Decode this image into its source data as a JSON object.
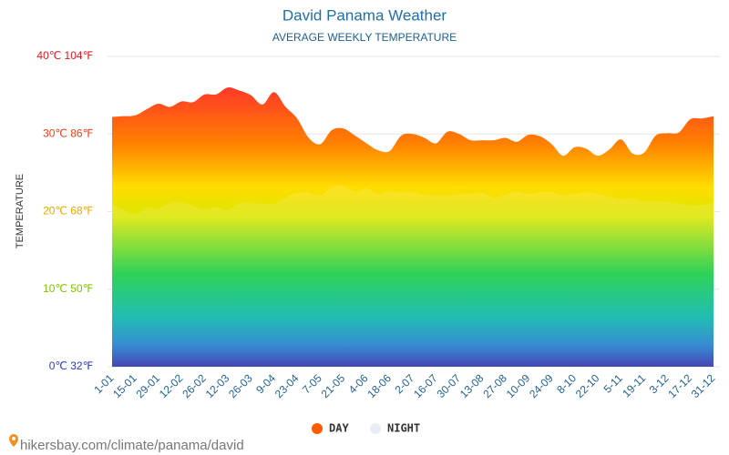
{
  "chart_data": {
    "type": "area",
    "title": "David Panama Weather",
    "subtitle": "AVERAGE WEEKLY TEMPERATURE",
    "y_label": "TEMPERATURE",
    "source": "hikersbay.com/climate/panama/david",
    "categories": [
      "1-01",
      null,
      "15-01",
      null,
      "29-01",
      null,
      "12-02",
      null,
      "26-02",
      null,
      "12-03",
      null,
      "26-03",
      null,
      "9-04",
      null,
      "23-04",
      null,
      "7-05",
      null,
      "21-05",
      null,
      "4-06",
      null,
      "18-06",
      null,
      "2-07",
      null,
      "16-07",
      null,
      "30-07",
      null,
      "13-08",
      null,
      "27-08",
      null,
      "10-09",
      null,
      "24-09",
      null,
      "8-10",
      null,
      "22-10",
      null,
      "5-11",
      null,
      "19-11",
      null,
      "3-12",
      null,
      "17-12",
      null,
      "31-12"
    ],
    "series": [
      {
        "name": "DAY",
        "color": "#ff5a00",
        "values": [
          32.2,
          32.3,
          32.4,
          33.2,
          33.9,
          33.5,
          34.2,
          34.1,
          35.1,
          35.1,
          36.0,
          35.6,
          35.0,
          33.8,
          35.4,
          33.5,
          32.0,
          29.5,
          28.7,
          30.5,
          30.7,
          29.8,
          28.8,
          27.9,
          27.8,
          29.8,
          30.0,
          29.5,
          28.8,
          30.3,
          30.0,
          29.2,
          29.2,
          29.2,
          29.5,
          29.0,
          29.9,
          29.7,
          28.7,
          27.2,
          28.3,
          28.1,
          27.2,
          28.0,
          29.3,
          27.5,
          27.6,
          29.8,
          30.1,
          30.2,
          31.9,
          32.0,
          32.3
        ]
      },
      {
        "name": "NIGHT",
        "color": "#e8eef5",
        "values": [
          21.0,
          20.2,
          19.7,
          20.5,
          20.4,
          21.1,
          21.2,
          20.7,
          20.3,
          20.6,
          20.2,
          21.1,
          21.1,
          21.0,
          21.0,
          21.8,
          22.4,
          22.5,
          22.1,
          23.2,
          23.3,
          22.6,
          23.0,
          22.3,
          22.6,
          22.5,
          22.5,
          22.2,
          22.1,
          22.1,
          22.2,
          22.3,
          22.4,
          21.8,
          22.2,
          22.6,
          22.3,
          22.5,
          22.5,
          22.1,
          22.3,
          22.5,
          22.3,
          21.9,
          21.6,
          21.7,
          21.3,
          21.3,
          21.2,
          21.0,
          20.8,
          20.8,
          21.2
        ]
      }
    ],
    "ylim": [
      0,
      40
    ],
    "yticks": [
      {
        "value": 0,
        "label": "0℃ 32℉"
      },
      {
        "value": 10,
        "label": "10℃ 50℉"
      },
      {
        "value": 20,
        "label": "20℃ 68℉"
      },
      {
        "value": 30,
        "label": "30℃ 86℉"
      },
      {
        "value": 40,
        "label": "40℃ 104℉"
      }
    ],
    "ytick_colors": [
      "#2c3ab8",
      "#7cc400",
      "#e8a800",
      "#e8401a",
      "#e3161e"
    ],
    "grid": true,
    "legend": "bottom"
  }
}
